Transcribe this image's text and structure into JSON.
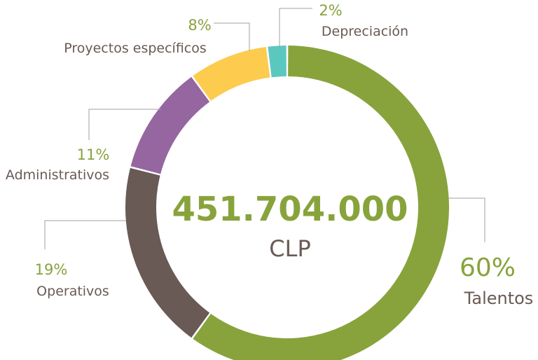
{
  "chart_data": {
    "type": "pie",
    "variant": "donut",
    "center": {
      "value": "451.704.000",
      "unit": "CLP"
    },
    "slices": [
      {
        "label": "Talentos",
        "value": 60,
        "value_label": "60%",
        "color": "#88a33c"
      },
      {
        "label": "Operativos",
        "value": 19,
        "value_label": "19%",
        "color": "#695a55"
      },
      {
        "label": "Administrativos",
        "value": 11,
        "value_label": "11%",
        "color": "#9566a0"
      },
      {
        "label": "Proyectos específicos",
        "value": 8,
        "value_label": "8%",
        "color": "#fdcb4e"
      },
      {
        "label": "Depreciación",
        "value": 2,
        "value_label": "2%",
        "color": "#5bc8c0"
      }
    ],
    "colors": {
      "percent_text": "#88a33c",
      "label_text": "#695a55",
      "leader_line": "#a0a0a0"
    }
  }
}
